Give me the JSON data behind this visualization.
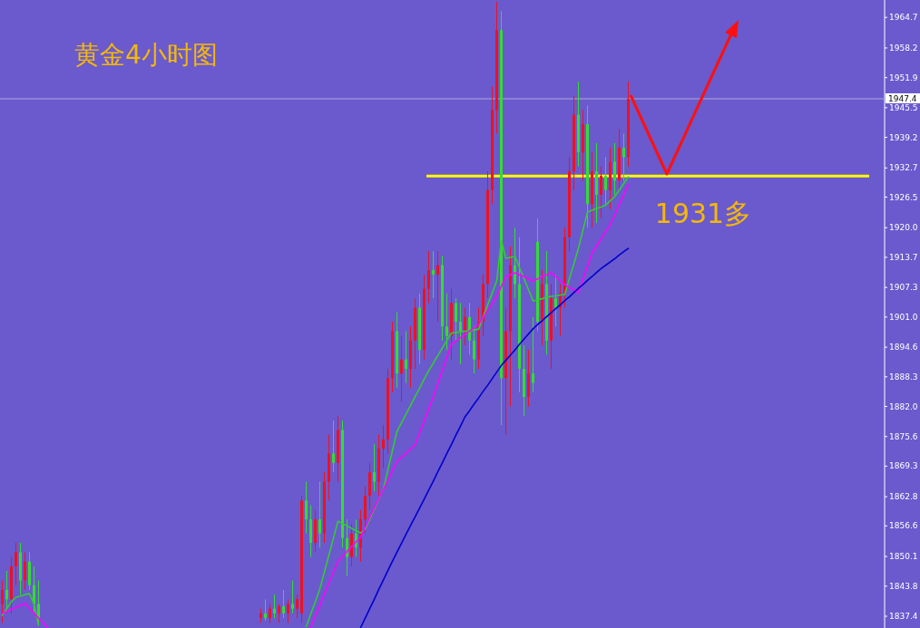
{
  "chart_data": {
    "type": "candlestick",
    "title": "黄金4小时图",
    "categories": [
      null,
      null,
      null,
      null,
      null,
      null,
      null,
      null,
      null,
      null,
      null,
      null,
      null,
      null,
      null,
      null,
      null,
      null,
      null,
      null,
      null,
      null,
      null,
      null,
      null,
      null,
      null,
      null,
      null,
      null,
      null,
      null,
      null,
      null,
      null,
      null,
      null,
      null,
      null,
      null,
      null,
      null,
      null,
      null,
      null,
      null,
      null,
      null,
      null,
      null,
      null,
      null,
      null,
      null,
      null,
      null,
      null,
      null,
      null,
      null,
      null,
      null,
      null,
      null,
      null,
      null,
      null,
      null,
      null,
      null,
      null,
      null,
      null,
      null,
      null,
      null,
      null,
      null,
      null,
      null,
      null,
      null,
      null,
      null,
      null,
      null,
      null,
      null,
      null,
      null,
      null,
      null,
      null,
      null,
      null,
      null,
      null,
      null,
      null,
      null,
      null,
      null,
      null,
      null,
      null,
      null,
      null,
      null,
      null,
      null,
      null,
      null,
      null,
      null,
      null,
      null,
      null,
      null,
      null,
      null,
      null,
      null,
      null,
      null,
      null,
      null,
      null,
      null,
      null,
      null,
      null,
      null,
      null,
      null,
      null,
      null,
      null,
      null,
      null,
      null,
      null,
      null,
      null,
      null,
      null,
      null,
      null,
      null,
      null,
      null,
      null,
      null,
      null,
      null,
      null,
      null,
      null,
      null,
      null,
      null,
      null,
      null,
      null,
      null,
      null,
      null,
      null,
      null,
      null,
      null,
      null,
      null,
      null,
      null,
      null,
      null,
      null,
      null,
      null,
      null,
      null,
      null,
      null,
      null,
      null,
      null,
      null,
      null,
      null,
      null,
      null,
      null,
      null,
      null,
      null
    ],
    "ohlc": [
      [
        1840,
        1845,
        1836,
        1843
      ],
      [
        1843,
        1847,
        1839,
        1841
      ],
      [
        1841,
        1850,
        1838,
        1848
      ],
      [
        1848,
        1853,
        1844,
        1851
      ],
      [
        1851,
        1853,
        1842,
        1845
      ],
      [
        1845,
        1851,
        1843,
        1849
      ],
      [
        1849,
        1851,
        1843,
        1844
      ],
      [
        1844,
        1848,
        1838,
        1840
      ],
      [
        1840,
        1845,
        1835.5,
        1837
      ],
      null,
      null,
      null,
      null,
      null,
      null,
      null,
      null,
      null,
      null,
      null,
      null,
      null,
      null,
      null,
      null,
      null,
      null,
      null,
      null,
      null,
      null,
      null,
      null,
      null,
      null,
      null,
      null,
      null,
      null,
      null,
      null,
      null,
      null,
      null,
      null,
      null,
      null,
      null,
      null,
      null,
      null,
      null,
      null,
      null,
      null,
      null,
      null,
      [
        1837,
        1839,
        1836,
        1838
      ],
      [
        1838,
        1841,
        1836.5,
        1837
      ],
      [
        1837,
        1840,
        1836,
        1839
      ],
      [
        1839,
        1842,
        1837,
        1838
      ],
      [
        1838,
        1840,
        1836,
        1839.5
      ],
      [
        1839.5,
        1843,
        1837,
        1838
      ],
      [
        1838,
        1841,
        1836,
        1840
      ],
      [
        1840,
        1845,
        1838,
        1839
      ],
      [
        1839,
        1842,
        1837,
        1841
      ],
      [
        1838,
        1863,
        1836,
        1862
      ],
      [
        1862,
        1866,
        1855,
        1858
      ],
      [
        1858,
        1861,
        1850,
        1853
      ],
      [
        1853,
        1860,
        1851,
        1858
      ],
      [
        1858,
        1866,
        1852,
        1855
      ],
      [
        1855,
        1868,
        1853,
        1866
      ],
      [
        1866,
        1876,
        1862,
        1872
      ],
      [
        1872,
        1879,
        1868,
        1870
      ],
      [
        1870,
        1880,
        1866,
        1877
      ],
      [
        1877,
        1879,
        1852,
        1854
      ],
      [
        1854,
        1858,
        1846,
        1850
      ],
      [
        1850,
        1857,
        1848,
        1855
      ],
      [
        1855,
        1858,
        1850,
        1852
      ],
      [
        1852,
        1860,
        1849,
        1858
      ],
      [
        1858,
        1865,
        1855,
        1863
      ],
      [
        1863,
        1870,
        1860,
        1868
      ],
      [
        1868,
        1874,
        1864,
        1866
      ],
      [
        1866,
        1876,
        1863,
        1873
      ],
      [
        1873,
        1878,
        1869,
        1875
      ],
      [
        1875,
        1890,
        1872,
        1888
      ],
      [
        1888,
        1900,
        1885,
        1898
      ],
      [
        1898,
        1902,
        1886,
        1889
      ],
      [
        1889,
        1897,
        1883,
        1892
      ],
      [
        1892,
        1898,
        1887,
        1890
      ],
      [
        1890,
        1899,
        1886,
        1896
      ],
      [
        1896,
        1905,
        1890,
        1903
      ],
      [
        1903,
        1906,
        1891,
        1894
      ],
      [
        1894,
        1910,
        1892,
        1907
      ],
      [
        1907,
        1915,
        1904,
        1911
      ],
      [
        1911,
        1915,
        1905,
        1910
      ],
      [
        1910,
        1915,
        1900,
        1912
      ],
      [
        1912,
        1914,
        1896,
        1899
      ],
      [
        1899,
        1906,
        1894,
        1897
      ],
      [
        1897,
        1907,
        1892,
        1904
      ],
      [
        1904,
        1905,
        1896,
        1900
      ],
      [
        1900,
        1904,
        1891,
        1898
      ],
      [
        1898,
        1903,
        1895,
        1901
      ],
      [
        1901,
        1904,
        1893,
        1896
      ],
      [
        1896,
        1899,
        1889,
        1892
      ],
      [
        1892,
        1903,
        1890,
        1900
      ],
      [
        1900,
        1910,
        1897,
        1908
      ],
      [
        1908,
        1932,
        1905,
        1928
      ],
      [
        1928,
        1950,
        1925,
        1945
      ],
      [
        1945,
        1968,
        1940,
        1962
      ],
      [
        1962,
        1966,
        1878,
        1888
      ],
      [
        1888,
        1903,
        1876,
        1898
      ],
      [
        1898,
        1916,
        1882,
        1912
      ],
      [
        1912,
        1920,
        1905,
        1908
      ],
      [
        1908,
        1918,
        1885,
        1890
      ],
      [
        1890,
        1895,
        1880,
        1884
      ],
      [
        1884,
        1894,
        1882,
        1889
      ],
      [
        1889,
        1901,
        1885,
        1887
      ],
      [
        1917,
        1922,
        1898,
        1900
      ],
      [
        1900,
        1911,
        1895,
        1908
      ],
      [
        1908,
        1915,
        1893,
        1896
      ],
      [
        1896,
        1908,
        1890,
        1905
      ],
      [
        1905,
        1910,
        1899,
        1903
      ],
      [
        1903,
        1908,
        1897,
        1906
      ],
      [
        1906,
        1920,
        1903,
        1918
      ],
      [
        1918,
        1935,
        1915,
        1932
      ],
      [
        1932,
        1948,
        1928,
        1944
      ],
      [
        1944,
        1951,
        1933,
        1936
      ],
      [
        1936,
        1945,
        1930,
        1942
      ],
      [
        1942,
        1946,
        1920,
        1925
      ],
      [
        1925,
        1936,
        1920,
        1932
      ],
      [
        1932,
        1938,
        1921,
        1927
      ],
      [
        1927,
        1933,
        1922,
        1931
      ],
      [
        1931,
        1935,
        1925,
        1928
      ],
      [
        1928,
        1937,
        1924,
        1934
      ],
      [
        1934,
        1938,
        1927,
        1930
      ],
      [
        1930,
        1941,
        1928,
        1937
      ],
      [
        1937,
        1940,
        1930,
        1935
      ],
      [
        1935,
        1951,
        1933,
        1947.4
      ],
      null,
      null,
      null,
      null,
      null,
      null,
      null,
      null,
      null,
      null,
      null,
      null,
      null,
      null,
      null,
      null,
      null,
      null,
      null,
      null,
      null,
      null,
      null,
      null,
      null,
      null,
      null,
      null,
      null,
      null,
      null,
      null,
      null,
      null,
      null,
      null,
      null,
      null,
      null,
      null,
      null,
      null,
      null,
      null,
      null,
      null,
      null,
      null,
      null,
      null,
      null,
      null,
      null,
      null,
      null,
      null
    ],
    "colors": [
      "#ee1122",
      "#33dd33",
      "#ee1122",
      "#ee1122",
      "#33dd33",
      "#ee1122",
      "#33dd33",
      "#33dd33",
      "#33dd33",
      null,
      null,
      null,
      null,
      null,
      null,
      null,
      null,
      null,
      null,
      null,
      null,
      null,
      null,
      null,
      null,
      null,
      null,
      null,
      null,
      null,
      null,
      null,
      null,
      null,
      null,
      null,
      null,
      null,
      null,
      null,
      null,
      null,
      null,
      null,
      null,
      null,
      null,
      null,
      null,
      null,
      null,
      null,
      null,
      null,
      null,
      null,
      null,
      "#ee1122",
      "#33dd33",
      "#ee1122",
      "#33dd33",
      "#ee1122",
      "#33dd33",
      "#ee1122",
      "#33dd33",
      "#ee1122",
      "#ee1122",
      "#33dd33",
      "#33dd33",
      "#ee1122",
      "#33dd33",
      "#ee1122",
      "#ee1122",
      "#33dd33",
      "#ee1122",
      "#33dd33",
      "#33dd33",
      "#ee1122",
      "#33dd33",
      "#ee1122",
      "#ee1122",
      "#ee1122",
      "#33dd33",
      "#ee1122",
      "#ee1122",
      "#ee1122",
      "#ee1122",
      "#33dd33",
      "#ee1122",
      "#33dd33",
      "#ee1122",
      "#ee1122",
      "#33dd33",
      "#ee1122",
      "#ee1122",
      "#33dd33",
      "#ee1122",
      "#33dd33",
      "#33dd33",
      "#ee1122",
      "#33dd33",
      "#33dd33",
      "#ee1122",
      "#33dd33",
      "#33dd33",
      "#ee1122",
      "#ee1122",
      "#ee1122",
      "#ee1122",
      "#ee1122",
      "#33dd33",
      "#ee1122",
      "#ee1122",
      "#33dd33",
      "#33dd33",
      "#33dd33",
      "#ee1122",
      "#33dd33",
      "#33dd33",
      "#ee1122",
      "#33dd33",
      "#ee1122",
      "#33dd33",
      "#ee1122",
      "#ee1122",
      "#ee1122",
      "#ee1122",
      "#33dd33",
      "#ee1122",
      "#33dd33",
      "#ee1122",
      "#33dd33",
      "#ee1122",
      "#33dd33",
      "#ee1122",
      "#33dd33",
      "#ee1122",
      "#33dd33",
      "#ee1122",
      null,
      null,
      null,
      null,
      null,
      null,
      null,
      null,
      null,
      null,
      null,
      null,
      null,
      null,
      null,
      null,
      null,
      null,
      null,
      null,
      null,
      null,
      null,
      null,
      null,
      null,
      null,
      null,
      null,
      null,
      null,
      null,
      null,
      null,
      null,
      null,
      null,
      null,
      null,
      null,
      null,
      null,
      null,
      null,
      null,
      null,
      null,
      null,
      null,
      null,
      null,
      null,
      null,
      null,
      null,
      null
    ],
    "series": [
      {
        "type": "line",
        "color": "#33cc33",
        "values": [
          1837.6,
          1839,
          1840.5,
          1841.4,
          1841.7,
          1842,
          1842.2,
          1840,
          1835.5,
          null,
          null,
          null,
          null,
          null,
          null,
          null,
          null,
          null,
          null,
          null,
          null,
          null,
          null,
          null,
          null,
          null,
          null,
          null,
          null,
          null,
          null,
          null,
          null,
          null,
          null,
          null,
          null,
          null,
          null,
          null,
          null,
          null,
          null,
          null,
          null,
          null,
          null,
          null,
          null,
          null,
          null,
          null,
          null,
          null,
          null,
          null,
          null,
          null,
          null,
          null,
          null,
          null,
          null,
          null,
          null,
          null,
          null,
          1835.2,
          1837.9,
          1840.5,
          1843.2,
          1846.8,
          1850.4,
          1854.0,
          1857.6,
          1857.1,
          1856.6,
          1856.1,
          1855.6,
          1855.1,
          1855.9,
          1858.0,
          1860.1,
          1862.3,
          1864.4,
          1868.5,
          1872.6,
          1876.7,
          1878.5,
          1880.4,
          1882.2,
          1884.1,
          1885.9,
          1887.8,
          1889.6,
          1891.2,
          1892.8,
          1894.4,
          1896.0,
          1897.6,
          1897.7,
          1897.9,
          1898.0,
          1898.1,
          1898.3,
          1898.4,
          1901.0,
          1903.6,
          1906.1,
          1908.7,
          1917.3,
          1913.5,
          1913.7,
          1913.9,
          1911.5,
          1909.2,
          1906.8,
          1904.4,
          1904.7,
          1904.9,
          1905.2,
          1905.4,
          1905.5,
          1905.7,
          1905.8,
          1909.1,
          1912.3,
          1915.6,
          1919.5,
          1923.3,
          1923.7,
          1924.1,
          1924.4,
          1924.8,
          1925.7,
          1926.6,
          1928.0,
          1929.4,
          1930.8,
          null,
          null,
          null,
          null,
          null,
          null,
          null,
          null,
          null,
          null,
          null,
          null,
          null,
          null,
          null,
          null,
          null,
          null,
          null,
          null,
          null,
          null,
          null,
          null,
          null,
          null,
          null,
          null,
          null,
          null,
          null,
          null,
          null,
          null,
          null,
          null,
          null,
          null,
          null,
          null,
          null,
          null,
          null,
          null,
          null,
          null,
          null,
          null,
          null,
          null,
          null,
          null,
          null,
          null,
          null,
          null
        ]
      },
      {
        "type": "line",
        "color": "#ff00ff",
        "values": [
          1838.0,
          1838.4,
          1838.8,
          1839.3,
          1839.7,
          1840.1,
          1839.1,
          1838.1,
          1837.0,
          1836.0,
          1835.0,
          null,
          null,
          null,
          null,
          null,
          null,
          null,
          null,
          null,
          null,
          null,
          null,
          null,
          null,
          null,
          null,
          null,
          null,
          null,
          null,
          null,
          null,
          null,
          null,
          null,
          null,
          null,
          null,
          null,
          null,
          null,
          null,
          null,
          null,
          null,
          null,
          null,
          null,
          null,
          null,
          null,
          null,
          null,
          null,
          null,
          null,
          null,
          null,
          null,
          null,
          null,
          null,
          null,
          null,
          null,
          null,
          null,
          1835.0,
          1837.4,
          1839.7,
          1842.1,
          1844.4,
          1846.8,
          1849.1,
          1850.1,
          1851.2,
          1852.2,
          1853.2,
          1854.2,
          1856.3,
          1858.4,
          1860.4,
          1862.4,
          1864.3,
          1866.3,
          1868.3,
          1870.3,
          1871.2,
          1872.0,
          1872.9,
          1873.8,
          1876.4,
          1878.9,
          1881.5,
          1884.0,
          1886.8,
          1889.6,
          1892.4,
          1895.2,
          1895.9,
          1896.6,
          1897.3,
          1898.0,
          1898.7,
          1899.4,
          1900.9,
          1902.4,
          1903.9,
          1905.4,
          1907.5,
          1909.6,
          1910.0,
          1910.4,
          1910.0,
          1909.6,
          1909.1,
          1908.7,
          1909.1,
          1909.6,
          1910.0,
          1910.4,
          1909.6,
          1908.7,
          1907.9,
          1907.3,
          1906.8,
          1906.2,
          1909.0,
          1911.8,
          1914.6,
          1916.1,
          1917.6,
          1919.1,
          1920.6,
          1922.7,
          1924.9,
          1927.0,
          1929.1,
          null,
          null,
          null,
          null,
          null,
          null,
          null,
          null,
          null,
          null,
          null,
          null,
          null,
          null,
          null,
          null,
          null,
          null,
          null,
          null,
          null,
          null,
          null,
          null,
          null,
          null,
          null,
          null,
          null,
          null,
          null,
          null,
          null,
          null,
          null,
          null,
          null,
          null,
          null,
          null,
          null,
          null,
          null,
          null,
          null,
          null,
          null,
          null,
          null,
          null,
          null,
          null,
          null,
          null,
          null,
          null
        ]
      },
      {
        "type": "line",
        "color": "#0000cc",
        "values": [
          null,
          null,
          null,
          null,
          null,
          null,
          null,
          null,
          null,
          null,
          null,
          null,
          null,
          null,
          null,
          null,
          null,
          null,
          null,
          null,
          null,
          null,
          null,
          null,
          null,
          null,
          null,
          null,
          null,
          null,
          null,
          null,
          null,
          null,
          null,
          null,
          null,
          null,
          null,
          null,
          null,
          null,
          null,
          null,
          null,
          null,
          null,
          null,
          null,
          null,
          null,
          null,
          null,
          null,
          null,
          null,
          null,
          null,
          null,
          null,
          null,
          null,
          null,
          null,
          null,
          null,
          null,
          null,
          null,
          null,
          null,
          null,
          null,
          null,
          null,
          null,
          null,
          null,
          null,
          1835.0,
          1837.0,
          1839.0,
          1841.0,
          1843.1,
          1845.1,
          1847.1,
          1849.1,
          1851.0,
          1852.9,
          1854.8,
          1856.7,
          1858.5,
          1860.4,
          1862.3,
          1864.2,
          1866.1,
          1868.1,
          1870.0,
          1872.0,
          1873.9,
          1875.9,
          1877.8,
          1879.8,
          1881.1,
          1882.5,
          1883.8,
          1885.2,
          1886.5,
          1887.9,
          1889.3,
          1890.7,
          1891.8,
          1892.9,
          1894.0,
          1895.2,
          1896.3,
          1897.4,
          1898.5,
          1899.4,
          1900.2,
          1901.1,
          1901.9,
          1902.8,
          1903.6,
          1904.5,
          1905.3,
          1906.2,
          1907.1,
          1907.9,
          1908.8,
          1909.6,
          1910.5,
          1911.3,
          1912.0,
          1912.7,
          1913.4,
          1914.2,
          1914.9,
          1915.6,
          null,
          null,
          null,
          null,
          null,
          null,
          null,
          null,
          null,
          null,
          null,
          null,
          null,
          null,
          null,
          null,
          null,
          null,
          null,
          null,
          null,
          null,
          null,
          null,
          null,
          null,
          null,
          null,
          null,
          null,
          null,
          null,
          null,
          null,
          null,
          null,
          null,
          null,
          null,
          null,
          null,
          null,
          null,
          null,
          null,
          null,
          null,
          null,
          null,
          null,
          null,
          null,
          null,
          null,
          null,
          null
        ]
      }
    ],
    "ref_lines": [
      {
        "axis": "y",
        "value": 1947.4,
        "label": "1947.4",
        "color": "#b0a8d8"
      },
      {
        "axis": "y",
        "value": 1931,
        "color": "#ffff00"
      }
    ],
    "annotations": [
      {
        "text": "1931多",
        "y": 1931
      }
    ],
    "ylim": [
      1834.9,
      1968.4
    ],
    "yticks": [
      {
        "value": 1964.7,
        "label": "1964.7"
      },
      {
        "value": 1958.2,
        "label": "1958.2"
      },
      {
        "value": 1951.9,
        "label": "1951.9"
      },
      {
        "value": 1945.5,
        "label": "1945.5"
      },
      {
        "value": 1939.2,
        "label": "1939.2"
      },
      {
        "value": 1932.7,
        "label": "1932.7"
      },
      {
        "value": 1926.5,
        "label": "1926.5"
      },
      {
        "value": 1920,
        "label": "1920.0"
      },
      {
        "value": 1913.7,
        "label": "1913.7"
      },
      {
        "value": 1907.3,
        "label": "1907.3"
      },
      {
        "value": 1901,
        "label": "1901.0"
      },
      {
        "value": 1894.6,
        "label": "1894.6"
      },
      {
        "value": 1888.3,
        "label": "1888.3"
      },
      {
        "value": 1882,
        "label": "1882.0"
      },
      {
        "value": 1875.6,
        "label": "1875.6"
      },
      {
        "value": 1869.3,
        "label": "1869.3"
      },
      {
        "value": 1862.8,
        "label": "1862.8"
      },
      {
        "value": 1856.6,
        "label": "1856.6"
      },
      {
        "value": 1850.1,
        "label": "1850.1"
      },
      {
        "value": 1843.8,
        "label": "1843.8"
      },
      {
        "value": 1837.4,
        "label": "1837.4"
      }
    ],
    "tick_labels": "y",
    "grid": false
  }
}
